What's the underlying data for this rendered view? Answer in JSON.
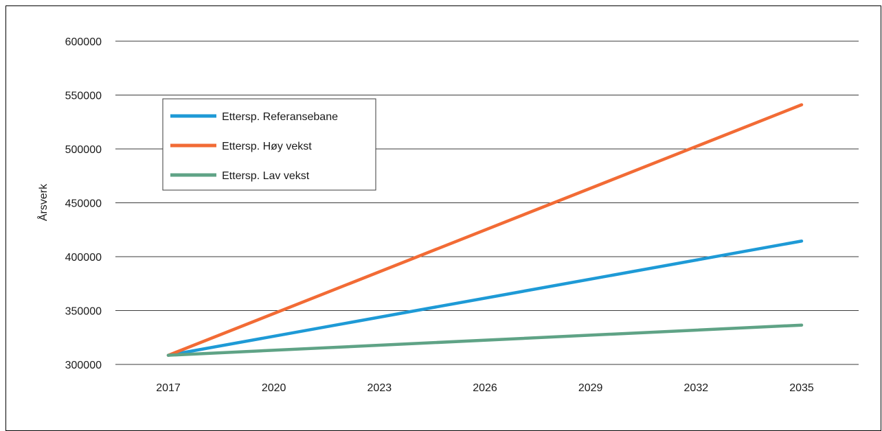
{
  "chart_data": {
    "type": "line",
    "ylabel": "Årsverk",
    "ylim": [
      300000,
      600000
    ],
    "yticks": [
      300000,
      350000,
      400000,
      450000,
      500000,
      550000,
      600000
    ],
    "x": [
      "2017",
      "2020",
      "2023",
      "2026",
      "2029",
      "2032",
      "2035"
    ],
    "legend_position": "top-left",
    "grid": "horizontal",
    "series": [
      {
        "name": "Ettersp. Referansebane",
        "color": "#1e9ad6",
        "x": [
          2017,
          2035
        ],
        "values": [
          308500,
          414500
        ]
      },
      {
        "name": "Ettersp. Høy vekst",
        "color": "#f26b35",
        "x": [
          2017,
          2035
        ],
        "values": [
          308500,
          541000
        ]
      },
      {
        "name": "Ettersp. Lav vekst",
        "color": "#5fa386",
        "x": [
          2017,
          2035
        ],
        "values": [
          308500,
          336500
        ]
      }
    ]
  }
}
